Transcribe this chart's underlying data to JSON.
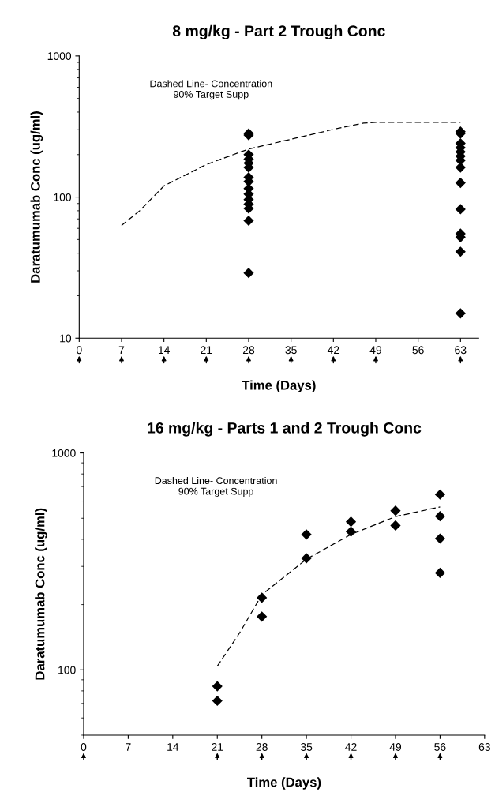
{
  "chart_data": [
    {
      "type": "scatter",
      "title": "8 mg/kg - Part 2 Trough Conc",
      "xlabel": "Time (Days)",
      "ylabel": "Daratumumab Conc (ug/ml)",
      "log": "y",
      "xlim": [
        0,
        66
      ],
      "xticks": [
        0,
        7,
        14,
        21,
        28,
        35,
        42,
        49,
        56,
        63
      ],
      "ylim": [
        10,
        1000
      ],
      "yticks": [
        10,
        100,
        1000
      ],
      "grid": false,
      "legend": false,
      "marker": "diamond",
      "annotations": [
        "Dashed Line- Concentration\n90% Target Supp"
      ],
      "series": [
        {
          "color": "#000000",
          "x": [
            28,
            28,
            28,
            28,
            28,
            28,
            28,
            28,
            28,
            28,
            28,
            28,
            28,
            28,
            28,
            63,
            63,
            63,
            63,
            63,
            63,
            63,
            63,
            63,
            63,
            63,
            63,
            63,
            63
          ],
          "values": [
            282,
            275,
            200,
            186,
            174,
            162,
            138,
            129,
            115,
            105,
            96,
            89,
            83,
            68,
            29,
            291,
            282,
            240,
            224,
            209,
            195,
            182,
            162,
            126,
            82,
            55,
            52,
            41,
            15
          ]
        },
        {
          "type": "line",
          "color": "#000000",
          "line_style": "dashed",
          "marker": "none",
          "x": [
            7,
            10,
            14,
            21,
            28,
            35,
            42,
            47,
            49,
            63
          ],
          "values": [
            63,
            80,
            120,
            170,
            219,
            257,
            302,
            334,
            339,
            339
          ]
        }
      ]
    },
    {
      "type": "scatter",
      "title": "16 mg/kg - Parts 1 and 2 Trough Conc",
      "xlabel": "Time (Days)",
      "ylabel": "Daratumumab Conc (ug/ml)",
      "log": "y",
      "xlim": [
        0,
        63
      ],
      "xticks": [
        0,
        7,
        14,
        21,
        28,
        35,
        42,
        49,
        56,
        63
      ],
      "ylim": [
        50,
        1000
      ],
      "yticks": [
        100,
        1000
      ],
      "grid": false,
      "legend": false,
      "marker": "diamond",
      "annotations": [
        "Dashed Line- Concentration\n90% Target Supp"
      ],
      "series": [
        {
          "color": "#000000",
          "x": [
            21,
            21,
            28,
            28,
            35,
            35,
            42,
            42,
            49,
            49,
            56,
            56,
            56,
            56
          ],
          "values": [
            84,
            72,
            215,
            176,
            421,
            327,
            482,
            434,
            542,
            463,
            643,
            511,
            403,
            280
          ]
        },
        {
          "type": "line",
          "color": "#000000",
          "line_style": "dashed",
          "marker": "none",
          "x": [
            21,
            24.5,
            28,
            31,
            35,
            42,
            49,
            56
          ],
          "values": [
            104,
            148,
            222,
            261,
            324,
            421,
            509,
            564
          ]
        }
      ]
    }
  ]
}
